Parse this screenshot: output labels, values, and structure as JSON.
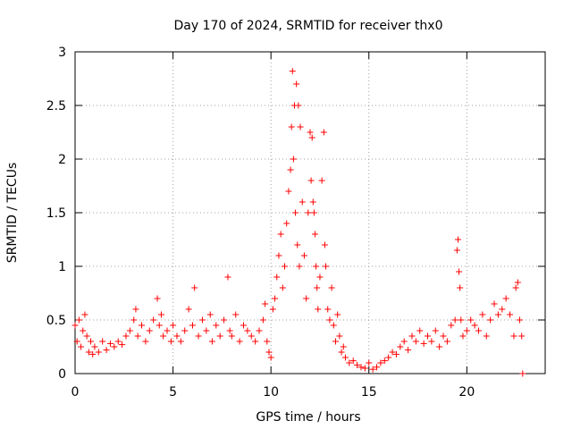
{
  "chart_data": {
    "type": "scatter",
    "title": "Day 170 of 2024, SRMTID for receiver thx0",
    "xlabel": "GPS time / hours",
    "ylabel": "SRMTID / TECUs",
    "xlim": [
      0,
      24
    ],
    "ylim": [
      0,
      3
    ],
    "xticks": [
      0,
      5,
      10,
      15,
      20
    ],
    "xtick_labels": [
      "0",
      "5",
      "10",
      "15",
      "20"
    ],
    "yticks": [
      0,
      0.5,
      1,
      1.5,
      2,
      2.5,
      3
    ],
    "ytick_labels": [
      "0",
      "0.5",
      "1",
      "1.5",
      "2",
      "2.5",
      "3"
    ],
    "grid": true,
    "marker": "+",
    "color": "#ff0000",
    "series": [
      {
        "name": "SRMTID",
        "x": [
          0.0,
          0.1,
          0.2,
          0.3,
          0.4,
          0.5,
          0.6,
          0.7,
          0.8,
          0.9,
          1.0,
          1.2,
          1.4,
          1.6,
          1.8,
          2.0,
          2.2,
          2.4,
          2.6,
          2.8,
          3.0,
          3.1,
          3.2,
          3.4,
          3.6,
          3.8,
          4.0,
          4.2,
          4.3,
          4.4,
          4.5,
          4.7,
          4.9,
          5.0,
          5.2,
          5.4,
          5.6,
          5.8,
          6.0,
          6.1,
          6.3,
          6.5,
          6.7,
          6.9,
          7.0,
          7.2,
          7.4,
          7.6,
          7.8,
          7.9,
          8.0,
          8.2,
          8.4,
          8.6,
          8.8,
          9.0,
          9.2,
          9.4,
          9.6,
          9.7,
          9.8,
          9.9,
          10.0,
          10.1,
          10.2,
          10.3,
          10.4,
          10.5,
          10.6,
          10.7,
          10.8,
          10.9,
          11.0,
          11.05,
          11.1,
          11.15,
          11.2,
          11.25,
          11.3,
          11.35,
          11.4,
          11.45,
          11.5,
          11.6,
          11.7,
          11.8,
          11.9,
          12.0,
          12.05,
          12.1,
          12.15,
          12.2,
          12.25,
          12.3,
          12.35,
          12.4,
          12.5,
          12.6,
          12.7,
          12.75,
          12.8,
          12.9,
          13.0,
          13.1,
          13.2,
          13.3,
          13.4,
          13.5,
          13.6,
          13.7,
          13.8,
          14.0,
          14.2,
          14.4,
          14.6,
          14.8,
          15.0,
          15.2,
          15.4,
          15.6,
          15.8,
          16.0,
          16.2,
          16.4,
          16.6,
          16.8,
          17.0,
          17.2,
          17.4,
          17.6,
          17.8,
          18.0,
          18.2,
          18.4,
          18.6,
          18.8,
          19.0,
          19.2,
          19.4,
          19.5,
          19.55,
          19.6,
          19.65,
          19.7,
          19.8,
          20.0,
          20.2,
          20.4,
          20.6,
          20.8,
          21.0,
          21.2,
          21.4,
          21.6,
          21.8,
          22.0,
          22.2,
          22.4,
          22.5,
          22.6,
          22.7,
          22.8,
          22.85
        ],
        "y": [
          0.45,
          0.3,
          0.5,
          0.25,
          0.4,
          0.55,
          0.35,
          0.2,
          0.3,
          0.18,
          0.25,
          0.2,
          0.3,
          0.22,
          0.28,
          0.25,
          0.3,
          0.27,
          0.35,
          0.4,
          0.5,
          0.6,
          0.35,
          0.45,
          0.3,
          0.4,
          0.5,
          0.7,
          0.45,
          0.55,
          0.35,
          0.4,
          0.3,
          0.45,
          0.35,
          0.3,
          0.4,
          0.6,
          0.45,
          0.8,
          0.35,
          0.5,
          0.4,
          0.55,
          0.3,
          0.45,
          0.35,
          0.5,
          0.9,
          0.4,
          0.35,
          0.55,
          0.3,
          0.45,
          0.4,
          0.35,
          0.3,
          0.4,
          0.5,
          0.65,
          0.3,
          0.2,
          0.15,
          0.6,
          0.7,
          0.9,
          1.1,
          1.3,
          0.8,
          1.0,
          1.4,
          1.7,
          1.9,
          2.3,
          2.82,
          2.0,
          2.5,
          1.5,
          2.7,
          1.2,
          2.5,
          1.0,
          2.3,
          1.6,
          1.1,
          0.7,
          1.5,
          2.25,
          1.8,
          2.2,
          1.6,
          1.5,
          1.3,
          1.0,
          0.8,
          0.6,
          0.9,
          1.8,
          2.25,
          1.2,
          1.0,
          0.6,
          0.5,
          0.8,
          0.45,
          0.3,
          0.55,
          0.35,
          0.2,
          0.25,
          0.15,
          0.1,
          0.12,
          0.08,
          0.06,
          0.05,
          0.1,
          0.04,
          0.06,
          0.1,
          0.12,
          0.15,
          0.2,
          0.18,
          0.25,
          0.3,
          0.22,
          0.35,
          0.3,
          0.4,
          0.28,
          0.35,
          0.3,
          0.4,
          0.25,
          0.35,
          0.3,
          0.45,
          0.5,
          1.15,
          1.25,
          0.95,
          0.8,
          0.5,
          0.35,
          0.4,
          0.5,
          0.45,
          0.4,
          0.55,
          0.35,
          0.5,
          0.65,
          0.55,
          0.6,
          0.7,
          0.55,
          0.35,
          0.8,
          0.85,
          0.5,
          0.35,
          0.0
        ]
      }
    ]
  }
}
